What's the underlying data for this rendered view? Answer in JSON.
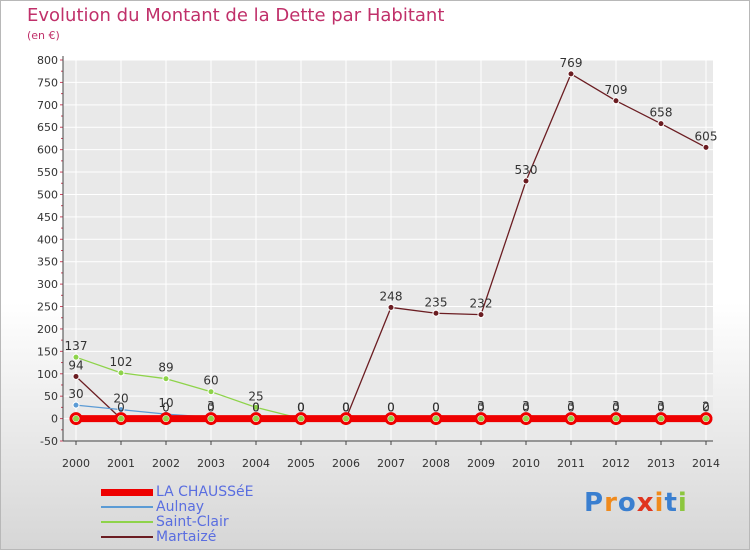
{
  "header": {
    "title": "Evolution du Montant de la Dette par Habitant",
    "unit": "(en €)"
  },
  "logo": {
    "letters": [
      "P",
      "r",
      "o",
      "x",
      "i",
      "t",
      "i"
    ],
    "colors": [
      "#3a7fd0",
      "#f08a1c",
      "#3a7fd0",
      "#e0351f",
      "#f08a1c",
      "#3a7fd0",
      "#8cc63e"
    ]
  },
  "colors": {
    "title": "#c0306a",
    "axis": "#444444",
    "tick_mark": "#d0455f",
    "grid": "#ffffff"
  },
  "chart_data": {
    "type": "line",
    "title": "Evolution du Montant de la Dette par Habitant",
    "ylabel": "(en €)",
    "xlabel": "",
    "x": [
      "2000",
      "2001",
      "2002",
      "2003",
      "2004",
      "2005",
      "2006",
      "2007",
      "2008",
      "2009",
      "2010",
      "2011",
      "2012",
      "2013",
      "2014"
    ],
    "ylim": [
      -50,
      800
    ],
    "yticks": [
      -50,
      0,
      50,
      100,
      150,
      200,
      250,
      300,
      350,
      400,
      450,
      500,
      550,
      600,
      650,
      700,
      750,
      800
    ],
    "legend_position": "bottom-left",
    "series": [
      {
        "name": "LA CHAUSSéE",
        "color": "#ee0000",
        "values": [
          0,
          0,
          0,
          0,
          0,
          0,
          0,
          0,
          0,
          0,
          0,
          0,
          0,
          0,
          0
        ],
        "labels": [
          "",
          "",
          "",
          "",
          "",
          "",
          "",
          "",
          "",
          "",
          "",
          "",
          "",
          "",
          ""
        ]
      },
      {
        "name": "Aulnay",
        "color": "#5b9bd5",
        "values": [
          30,
          20,
          10,
          3,
          0,
          0,
          0,
          0,
          0,
          0,
          0,
          0,
          0,
          0,
          0
        ],
        "labels": [
          "30",
          "20",
          "10",
          "3",
          "0",
          "0",
          "0",
          "0",
          "0",
          "0",
          "0",
          "0",
          "0",
          "0",
          "0"
        ]
      },
      {
        "name": "Saint-Clair",
        "color": "#8ed34a",
        "values": [
          137,
          102,
          89,
          60,
          25,
          0,
          0,
          0,
          0,
          3,
          3,
          3,
          3,
          3,
          2
        ],
        "labels": [
          "137",
          "102",
          "89",
          "60",
          "25",
          "0",
          "0",
          "0",
          "0",
          "3",
          "3",
          "3",
          "3",
          "3",
          "2"
        ]
      },
      {
        "name": "Martaizé",
        "color": "#6b1d22",
        "values": [
          94,
          0,
          0,
          0,
          0,
          0,
          0,
          248,
          235,
          232,
          530,
          769,
          709,
          658,
          605
        ],
        "labels": [
          "94",
          "0",
          "0",
          "0",
          "0",
          "0",
          "0",
          "248",
          "235",
          "232",
          "530",
          "769",
          "709",
          "658",
          "605"
        ]
      }
    ]
  }
}
